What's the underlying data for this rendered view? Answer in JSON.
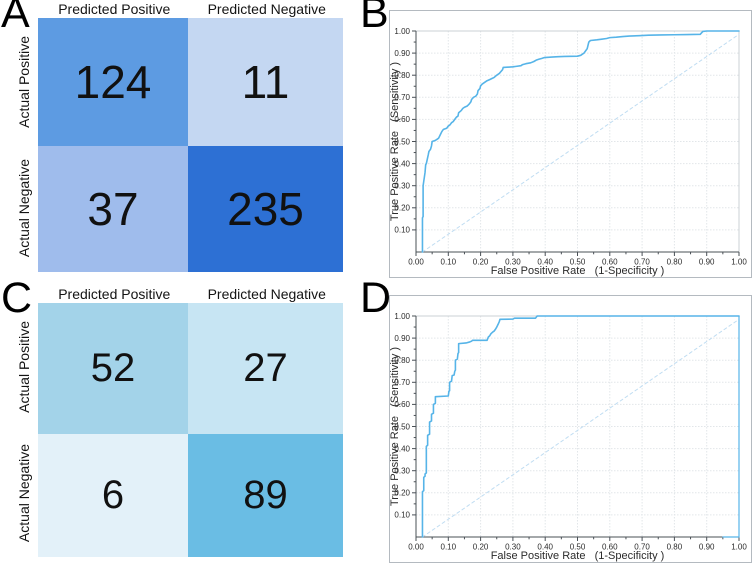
{
  "figure": {
    "panels": [
      {
        "letter": "A"
      },
      {
        "letter": "B"
      },
      {
        "letter": "C"
      },
      {
        "letter": "D"
      }
    ]
  },
  "confusion_matrices": [
    {
      "panel": "A",
      "col_headers": [
        "Predicted Positive",
        "Predicted Negative"
      ],
      "row_headers": [
        "Actual Positive",
        "Actual Negative"
      ],
      "values": [
        [
          "124",
          "11"
        ],
        [
          "37",
          "235"
        ]
      ],
      "cell_colors": [
        [
          "#5d9be2",
          "#c4d7f2"
        ],
        [
          "#9fbcec",
          "#2d70d4"
        ]
      ]
    },
    {
      "panel": "C",
      "col_headers": [
        "Predicted Positive",
        "Predicted Negative"
      ],
      "row_headers": [
        "Actual Positive",
        "Actual Negative"
      ],
      "values": [
        [
          "52",
          "27"
        ],
        [
          "6",
          "89"
        ]
      ],
      "cell_colors": [
        [
          "#a3d3e9",
          "#c7e5f3"
        ],
        [
          "#e3f1f9",
          "#6abde4"
        ]
      ]
    }
  ],
  "roc_style": {
    "curve_color": "#56b4e8",
    "reference_color": "#c0ddf2",
    "grid_color": "#e2e6e9",
    "axis_color": "#4a5056",
    "frame_color": "#cbd0d4",
    "panel_border_color": "#b4bac0",
    "text_color": "#2b2b2b"
  },
  "chart_data": [
    {
      "type": "line",
      "panel": "B",
      "title": "",
      "xlabel": "False Positive Rate   (1-Specificity )",
      "ylabel": "True Positive Rate   (Sensitivity )",
      "xlim": [
        0,
        1
      ],
      "ylim": [
        0,
        1
      ],
      "grid": true,
      "x_ticks": [
        "0.00",
        "0.10",
        "0.20",
        "0.30",
        "0.40",
        "0.50",
        "0.60",
        "0.70",
        "0.80",
        "0.90",
        "1.00"
      ],
      "y_ticks": [
        "0.10",
        "0.20",
        "0.30",
        "0.40",
        "0.50",
        "0.60",
        "0.70",
        "0.80",
        "0.90",
        "1.00"
      ],
      "series": [
        {
          "name": "reference-diagonal",
          "style": "dashed",
          "points": [
            [
              0.02,
              0.0
            ],
            [
              1.0,
              0.985
            ]
          ]
        },
        {
          "name": "roc-curve",
          "style": "solid",
          "points": [
            [
              0.02,
              0.0
            ],
            [
              0.02,
              0.155
            ],
            [
              0.022,
              0.16
            ],
            [
              0.022,
              0.3
            ],
            [
              0.025,
              0.33
            ],
            [
              0.028,
              0.36
            ],
            [
              0.03,
              0.395
            ],
            [
              0.032,
              0.4
            ],
            [
              0.035,
              0.42
            ],
            [
              0.038,
              0.44
            ],
            [
              0.04,
              0.455
            ],
            [
              0.045,
              0.465
            ],
            [
              0.048,
              0.48
            ],
            [
              0.05,
              0.5
            ],
            [
              0.06,
              0.505
            ],
            [
              0.065,
              0.51
            ],
            [
              0.07,
              0.515
            ],
            [
              0.075,
              0.53
            ],
            [
              0.08,
              0.545
            ],
            [
              0.085,
              0.555
            ],
            [
              0.095,
              0.56
            ],
            [
              0.1,
              0.57
            ],
            [
              0.105,
              0.575
            ],
            [
              0.11,
              0.585
            ],
            [
              0.115,
              0.59
            ],
            [
              0.12,
              0.6
            ],
            [
              0.125,
              0.61
            ],
            [
              0.13,
              0.615
            ],
            [
              0.132,
              0.63
            ],
            [
              0.14,
              0.64
            ],
            [
              0.145,
              0.65
            ],
            [
              0.15,
              0.655
            ],
            [
              0.158,
              0.66
            ],
            [
              0.165,
              0.67
            ],
            [
              0.17,
              0.68
            ],
            [
              0.172,
              0.69
            ],
            [
              0.178,
              0.7
            ],
            [
              0.185,
              0.705
            ],
            [
              0.19,
              0.715
            ],
            [
              0.192,
              0.73
            ],
            [
              0.198,
              0.74
            ],
            [
              0.2,
              0.752
            ],
            [
              0.205,
              0.76
            ],
            [
              0.21,
              0.765
            ],
            [
              0.22,
              0.775
            ],
            [
              0.228,
              0.78
            ],
            [
              0.235,
              0.785
            ],
            [
              0.242,
              0.79
            ],
            [
              0.25,
              0.8
            ],
            [
              0.258,
              0.808
            ],
            [
              0.262,
              0.815
            ],
            [
              0.268,
              0.825
            ],
            [
              0.27,
              0.835
            ],
            [
              0.3,
              0.838
            ],
            [
              0.31,
              0.84
            ],
            [
              0.325,
              0.843
            ],
            [
              0.33,
              0.848
            ],
            [
              0.34,
              0.852
            ],
            [
              0.355,
              0.856
            ],
            [
              0.365,
              0.862
            ],
            [
              0.372,
              0.868
            ],
            [
              0.38,
              0.872
            ],
            [
              0.39,
              0.876
            ],
            [
              0.398,
              0.88
            ],
            [
              0.42,
              0.882
            ],
            [
              0.44,
              0.884
            ],
            [
              0.46,
              0.885
            ],
            [
              0.5,
              0.886
            ],
            [
              0.51,
              0.89
            ],
            [
              0.52,
              0.9
            ],
            [
              0.53,
              0.92
            ],
            [
              0.535,
              0.95
            ],
            [
              0.54,
              0.957
            ],
            [
              0.56,
              0.96
            ],
            [
              0.575,
              0.963
            ],
            [
              0.59,
              0.966
            ],
            [
              0.6,
              0.97
            ],
            [
              0.62,
              0.972
            ],
            [
              0.64,
              0.975
            ],
            [
              0.66,
              0.977
            ],
            [
              0.69,
              0.979
            ],
            [
              0.72,
              0.981
            ],
            [
              0.76,
              0.982
            ],
            [
              0.8,
              0.983
            ],
            [
              0.84,
              0.984
            ],
            [
              0.88,
              0.985
            ],
            [
              0.888,
              0.998
            ],
            [
              0.9,
              1.0
            ],
            [
              1.0,
              1.0
            ]
          ]
        }
      ]
    },
    {
      "type": "line",
      "panel": "D",
      "title": "",
      "xlabel": "False Positive Rate   (1-Specificity )",
      "ylabel": "True Positive Rate   (Sensitivity )",
      "xlim": [
        0,
        1
      ],
      "ylim": [
        0,
        1
      ],
      "grid": true,
      "x_ticks": [
        "0.00",
        "0.10",
        "0.20",
        "0.30",
        "0.40",
        "0.50",
        "0.60",
        "0.70",
        "0.80",
        "0.90",
        "1.00"
      ],
      "y_ticks": [
        "0.10",
        "0.20",
        "0.30",
        "0.40",
        "0.50",
        "0.60",
        "0.70",
        "0.80",
        "0.90",
        "1.00"
      ],
      "series": [
        {
          "name": "reference-diagonal",
          "style": "dashed",
          "points": [
            [
              0.02,
              0.0
            ],
            [
              1.0,
              0.985
            ]
          ]
        },
        {
          "name": "roc-curve",
          "style": "solid",
          "points": [
            [
              0.02,
              0.0
            ],
            [
              0.02,
              0.205
            ],
            [
              0.024,
              0.21
            ],
            [
              0.024,
              0.27
            ],
            [
              0.028,
              0.275
            ],
            [
              0.028,
              0.285
            ],
            [
              0.032,
              0.29
            ],
            [
              0.032,
              0.41
            ],
            [
              0.036,
              0.415
            ],
            [
              0.036,
              0.46
            ],
            [
              0.042,
              0.465
            ],
            [
              0.042,
              0.52
            ],
            [
              0.048,
              0.525
            ],
            [
              0.048,
              0.555
            ],
            [
              0.054,
              0.56
            ],
            [
              0.054,
              0.6
            ],
            [
              0.06,
              0.605
            ],
            [
              0.06,
              0.635
            ],
            [
              0.1,
              0.638
            ],
            [
              0.102,
              0.66
            ],
            [
              0.104,
              0.662
            ],
            [
              0.104,
              0.7
            ],
            [
              0.11,
              0.705
            ],
            [
              0.112,
              0.73
            ],
            [
              0.118,
              0.733
            ],
            [
              0.12,
              0.75
            ],
            [
              0.122,
              0.755
            ],
            [
              0.122,
              0.8
            ],
            [
              0.128,
              0.805
            ],
            [
              0.13,
              0.83
            ],
            [
              0.132,
              0.835
            ],
            [
              0.132,
              0.875
            ],
            [
              0.155,
              0.878
            ],
            [
              0.165,
              0.882
            ],
            [
              0.172,
              0.886
            ],
            [
              0.175,
              0.89
            ],
            [
              0.22,
              0.89
            ],
            [
              0.224,
              0.905
            ],
            [
              0.228,
              0.91
            ],
            [
              0.232,
              0.92
            ],
            [
              0.238,
              0.928
            ],
            [
              0.242,
              0.932
            ],
            [
              0.246,
              0.94
            ],
            [
              0.25,
              0.95
            ],
            [
              0.254,
              0.962
            ],
            [
              0.258,
              0.975
            ],
            [
              0.26,
              0.985
            ],
            [
              0.3,
              0.986
            ],
            [
              0.305,
              0.99
            ],
            [
              0.37,
              0.99
            ],
            [
              0.375,
              1.0
            ],
            [
              1.0,
              1.0
            ]
          ]
        },
        {
          "name": "frame-edge",
          "style": "solid",
          "points": [
            [
              0.95,
              0.0
            ],
            [
              1.0,
              0.0
            ],
            [
              1.0,
              1.0
            ]
          ]
        }
      ]
    }
  ]
}
